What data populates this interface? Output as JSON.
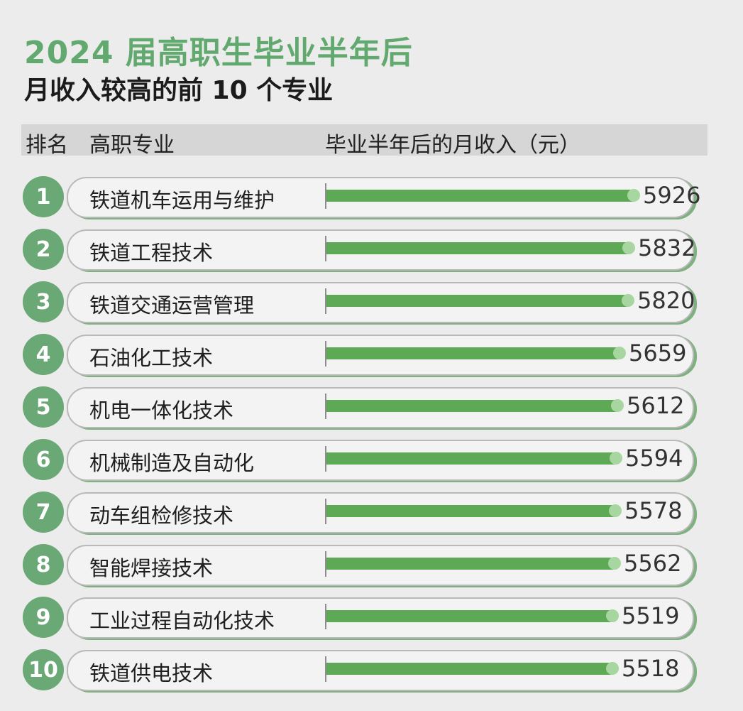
{
  "title": "2024 届高职生毕业半年后",
  "subtitle": "月收入较高的前 10 个专业",
  "header": {
    "rank": "排名",
    "major": "高职专业",
    "income": "毕业半年后的月收入（元）"
  },
  "colors": {
    "title": "#62a96f",
    "badge": "#6aa876",
    "bar": "#5ea955",
    "bar_end": "#a8d6a0",
    "header_bg": "#d6d6d6"
  },
  "chart_data": {
    "type": "bar",
    "orientation": "horizontal",
    "categories": [
      "铁道机车运用与维护",
      "铁道工程技术",
      "铁道交通运营管理",
      "石油化工技术",
      "机电一体化技术",
      "机械制造及自动化",
      "动车组检修技术",
      "智能焊接技术",
      "工业过程自动化技术",
      "铁道供电技术"
    ],
    "ranks": [
      "1",
      "2",
      "3",
      "4",
      "5",
      "6",
      "7",
      "8",
      "9",
      "10"
    ],
    "values": [
      5926,
      5832,
      5820,
      5659,
      5612,
      5594,
      5578,
      5562,
      5519,
      5518
    ],
    "title": "2024 届高职生毕业半年后 月收入较高的前 10 个专业",
    "xlabel": "毕业半年后的月收入（元）",
    "ylabel": "高职专业",
    "xlim": [
      0,
      5926
    ],
    "grid": false,
    "legend": "none"
  }
}
